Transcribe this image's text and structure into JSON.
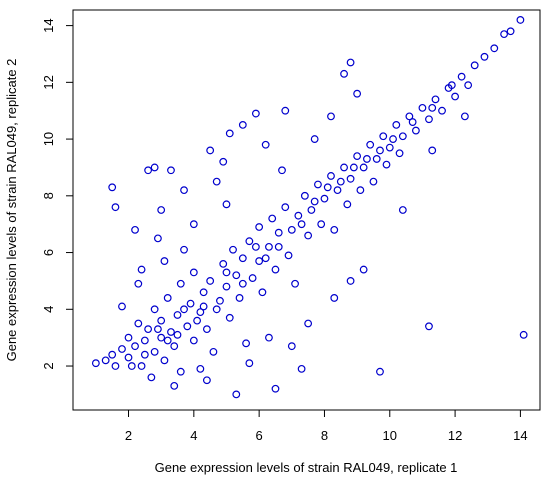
{
  "chart_data": {
    "type": "scatter",
    "xlabel": "Gene expression levels of strain RAL049, replicate 1",
    "ylabel": "Gene expression levels of strain RAL049, replicate 2",
    "color": "#0000cd",
    "xlim": [
      0.3,
      14.6
    ],
    "ylim": [
      0.45,
      14.55
    ],
    "xticks": [
      2,
      4,
      6,
      8,
      10,
      12,
      14
    ],
    "yticks": [
      2,
      4,
      6,
      8,
      10,
      12,
      14
    ],
    "x": [
      1.0,
      1.3,
      1.5,
      1.6,
      1.8,
      2.0,
      2.0,
      2.2,
      2.3,
      2.4,
      2.5,
      2.6,
      2.7,
      2.8,
      2.8,
      3.0,
      3.0,
      3.1,
      3.2,
      3.3,
      3.4,
      3.5,
      3.6,
      3.6,
      3.8,
      3.9,
      4.0,
      4.0,
      4.2,
      4.3,
      4.4,
      4.5,
      4.6,
      4.8,
      4.9,
      5.0,
      5.1,
      5.2,
      5.3,
      5.4,
      5.5,
      5.6,
      5.7,
      5.8,
      6.0,
      6.0,
      6.1,
      6.3,
      6.4,
      6.5,
      6.6,
      6.8,
      6.9,
      7.0,
      7.1,
      7.2,
      7.4,
      7.5,
      7.6,
      7.8,
      7.9,
      8.0,
      8.2,
      8.3,
      8.4,
      8.6,
      8.7,
      8.8,
      9.0,
      9.1,
      9.2,
      9.4,
      9.5,
      9.6,
      9.8,
      9.9,
      10.0,
      10.2,
      10.3,
      10.4,
      10.6,
      10.8,
      11.0,
      11.2,
      11.4,
      11.6,
      11.8,
      12.0,
      12.2,
      12.4,
      12.6,
      12.9,
      13.2,
      13.5,
      14.0,
      1.5,
      1.6,
      2.2,
      2.4,
      2.6,
      2.8,
      3.3,
      3.0,
      3.7,
      4.5,
      4.7,
      4.9,
      5.1,
      5.5,
      5.9,
      5.0,
      6.2,
      6.8,
      8.8,
      8.6,
      2.3,
      1.8,
      5.3,
      6.5,
      7.3,
      9.7,
      11.2,
      14.1,
      8.3,
      7.5,
      8.8,
      9.2,
      10.4,
      11.3,
      12.3,
      13.7,
      6.3,
      7.0,
      5.7,
      4.4,
      3.4,
      3.7,
      2.9,
      4.0,
      6.7,
      7.7,
      8.2,
      9.0,
      4.2,
      3.1,
      2.1,
      2.5,
      2.9,
      3.2,
      3.5,
      3.7,
      4.1,
      4.3,
      4.7,
      5.0,
      5.5,
      5.9,
      6.2,
      6.6,
      7.3,
      7.7,
      8.1,
      8.5,
      8.9,
      9.3,
      9.7,
      10.1,
      10.7,
      11.3,
      11.9
    ],
    "values": [
      2.1,
      2.2,
      2.4,
      2.0,
      2.6,
      2.3,
      3.0,
      2.7,
      3.5,
      2.0,
      2.9,
      3.3,
      1.6,
      2.5,
      4.0,
      3.0,
      3.6,
      2.2,
      4.4,
      3.2,
      2.7,
      3.8,
      1.8,
      4.9,
      3.4,
      4.2,
      2.9,
      5.3,
      3.9,
      4.6,
      3.3,
      5.0,
      2.5,
      4.3,
      5.6,
      4.8,
      3.7,
      6.1,
      5.2,
      4.4,
      5.8,
      2.8,
      6.4,
      5.1,
      5.7,
      6.9,
      4.6,
      6.2,
      7.2,
      5.4,
      6.7,
      7.6,
      5.9,
      6.8,
      4.9,
      7.3,
      8.0,
      6.6,
      7.5,
      8.4,
      7.0,
      7.9,
      8.7,
      6.8,
      8.2,
      9.0,
      7.7,
      8.6,
      9.4,
      8.2,
      9.0,
      9.8,
      8.5,
      9.3,
      10.1,
      9.1,
      9.7,
      10.5,
      9.5,
      10.1,
      10.8,
      10.3,
      11.1,
      10.7,
      11.4,
      11.0,
      11.8,
      11.5,
      12.2,
      11.9,
      12.6,
      12.9,
      13.2,
      13.7,
      14.2,
      8.3,
      7.6,
      6.8,
      5.4,
      8.9,
      9.0,
      8.9,
      7.5,
      8.2,
      9.6,
      8.5,
      9.2,
      10.2,
      10.5,
      10.9,
      7.7,
      9.8,
      11.0,
      12.7,
      12.3,
      4.9,
      4.1,
      1.0,
      1.2,
      1.9,
      1.8,
      3.4,
      3.1,
      4.4,
      3.5,
      5.0,
      5.4,
      7.5,
      9.6,
      10.8,
      13.8,
      3.0,
      2.7,
      2.1,
      1.5,
      1.3,
      6.1,
      6.5,
      7.0,
      8.9,
      10.0,
      10.8,
      11.6,
      1.9,
      5.7,
      2.0,
      2.4,
      3.3,
      2.9,
      3.1,
      4.0,
      3.6,
      4.1,
      4.0,
      5.3,
      4.9,
      6.2,
      5.8,
      6.2,
      7.0,
      7.8,
      8.3,
      8.5,
      9.0,
      9.3,
      9.6,
      10.0,
      10.6,
      11.1,
      11.9
    ]
  }
}
